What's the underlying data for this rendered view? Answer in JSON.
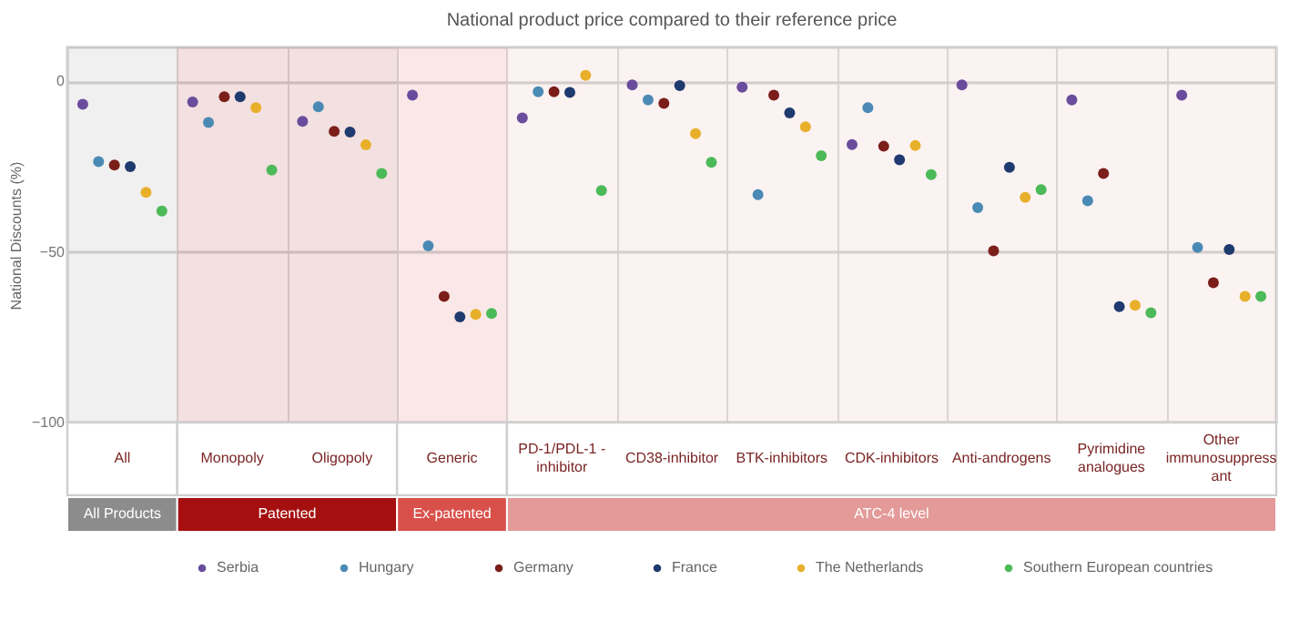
{
  "chart_data": {
    "type": "scatter",
    "title": "National product price compared to their reference price",
    "ylabel": "National Discounts (%)",
    "categories": [
      "All",
      "Monopoly",
      "Oligopoly",
      "Generic",
      "PD-1/PDL-1 - inhibitor",
      "CD38-inhibitor",
      "BTK-inhibitors",
      "CDK-inhibitors",
      "Anti-androgens",
      "Pyrimidine analogues",
      "Other immunosuppressant"
    ],
    "ylim": [
      -100,
      10
    ],
    "yticks": [
      -100,
      -50,
      0
    ],
    "grid": true,
    "legend": "bottom",
    "marker": "circle",
    "bands": [
      {
        "axis": "x",
        "from": "All",
        "to": "All",
        "label": "All Products",
        "color": "#8c8c8c"
      },
      {
        "axis": "x",
        "from": "Monopoly",
        "to": "Oligopoly",
        "label": "Patented",
        "color": "#a50f0f"
      },
      {
        "axis": "x",
        "from": "Generic",
        "to": "Generic",
        "label": "Ex-patented",
        "color": "#d9504a"
      },
      {
        "axis": "x",
        "from": "PD-1/PDL-1 - inhibitor",
        "to": "Other immunosuppressant",
        "label": "ATC-4 level",
        "color": "#e39a98"
      }
    ],
    "series": [
      {
        "name": "Serbia",
        "color": "#6a4c9c",
        "values": [
          -6.7,
          -6,
          -11.7,
          -4,
          -10.7,
          -1,
          -1.7,
          -18.5,
          -1,
          -5.4,
          -4
        ]
      },
      {
        "name": "Hungary",
        "color": "#4a8ab5",
        "values": [
          -23.5,
          -12,
          -7.4,
          -48.2,
          -3,
          -5.4,
          -33.2,
          -7.7,
          -37,
          -35,
          -48.7
        ]
      },
      {
        "name": "Germany",
        "color": "#7b1e1a",
        "values": [
          -24.5,
          -4.5,
          -14.6,
          -63,
          -3,
          -6.4,
          -4,
          -19,
          -49.7,
          -27,
          -59
        ]
      },
      {
        "name": "France",
        "color": "#1f3a6e",
        "values": [
          -25,
          -4.5,
          -14.8,
          -69,
          -3.2,
          -1.2,
          -9.2,
          -23,
          -25.2,
          -66,
          -49.3
        ]
      },
      {
        "name": "The Netherlands",
        "color": "#e8b02a",
        "values": [
          -32.5,
          -7.7,
          -18.6,
          -68.3,
          1.8,
          -15.3,
          -13.3,
          -18.8,
          -34,
          -65.6,
          -63
        ]
      },
      {
        "name": "Southern European countries",
        "color": "#4cba58",
        "values": [
          -38,
          -26,
          -27,
          -68,
          -32,
          -23.7,
          -21.8,
          -27.3,
          -31.7,
          -67.8,
          -63
        ]
      }
    ]
  }
}
